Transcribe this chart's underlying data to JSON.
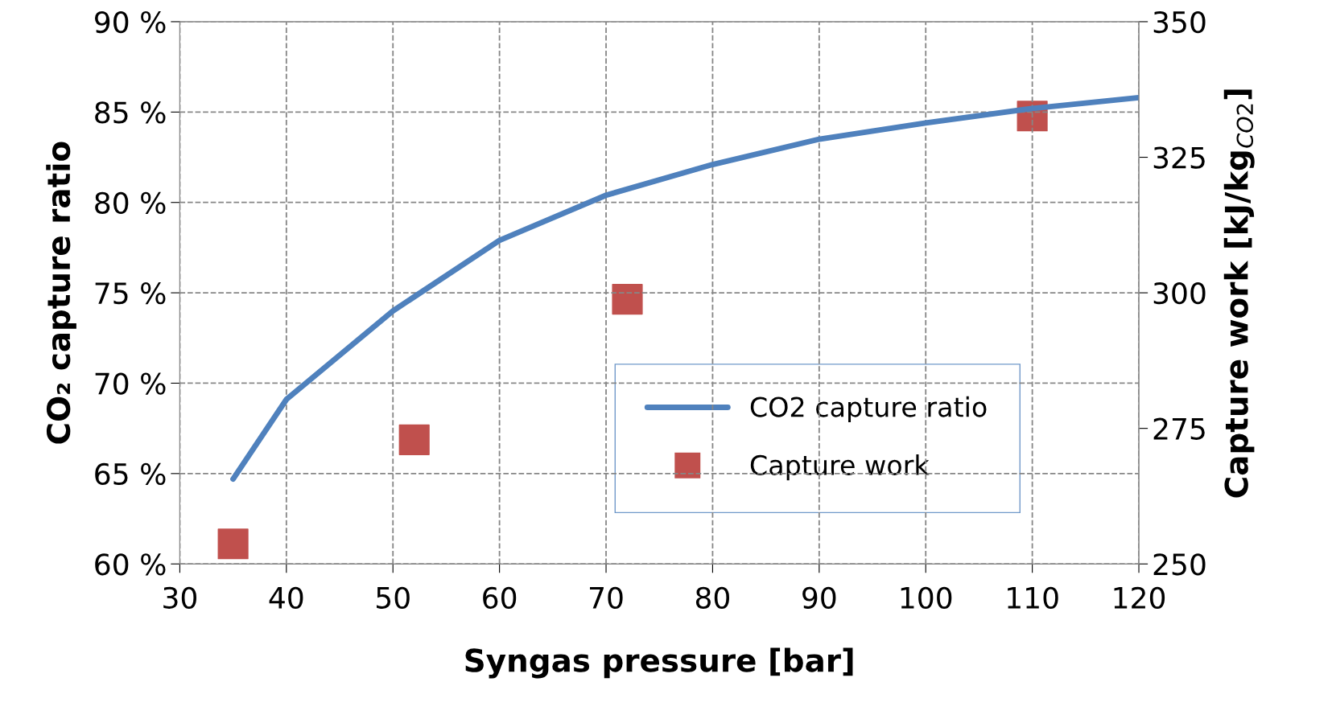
{
  "chart_data": {
    "type": "line",
    "xlabel": "Syngas pressure [bar]",
    "ylabel": "CO₂ capture ratio",
    "y2label": "Capture work [kJ/kg$_{CO2}$]",
    "xlim": [
      30,
      120
    ],
    "xticks": [
      30,
      40,
      50,
      60,
      70,
      80,
      90,
      100,
      110,
      120
    ],
    "ylim": [
      60,
      90
    ],
    "yticks": [
      {
        "value": 60,
        "label": "60 %"
      },
      {
        "value": 65,
        "label": "65 %"
      },
      {
        "value": 70,
        "label": "70 %"
      },
      {
        "value": 75,
        "label": "75 %"
      },
      {
        "value": 80,
        "label": "80 %"
      },
      {
        "value": 85,
        "label": "85 %"
      },
      {
        "value": 90,
        "label": "90 %"
      }
    ],
    "y2lim": [
      250,
      350
    ],
    "y2ticks": [
      250,
      275,
      300,
      325,
      350
    ],
    "grid": true,
    "legend": "bottom right",
    "series": [
      {
        "name": "CO2 capture ratio",
        "color": "#4f81bd",
        "line_style": "solid",
        "marker": "none",
        "x": [
          35,
          40,
          50,
          60,
          70,
          80,
          90,
          100,
          110,
          120
        ],
        "values": [
          64.7,
          69.1,
          74.0,
          77.9,
          80.4,
          82.1,
          83.5,
          84.4,
          85.2,
          85.8
        ]
      },
      {
        "name": "Capture work",
        "type": "scatter",
        "axis": "y2",
        "color": "#c0504d",
        "marker": "square",
        "x": [
          35,
          52,
          72,
          110
        ],
        "values": [
          253.7,
          272.9,
          298.8,
          332.6
        ]
      }
    ]
  }
}
